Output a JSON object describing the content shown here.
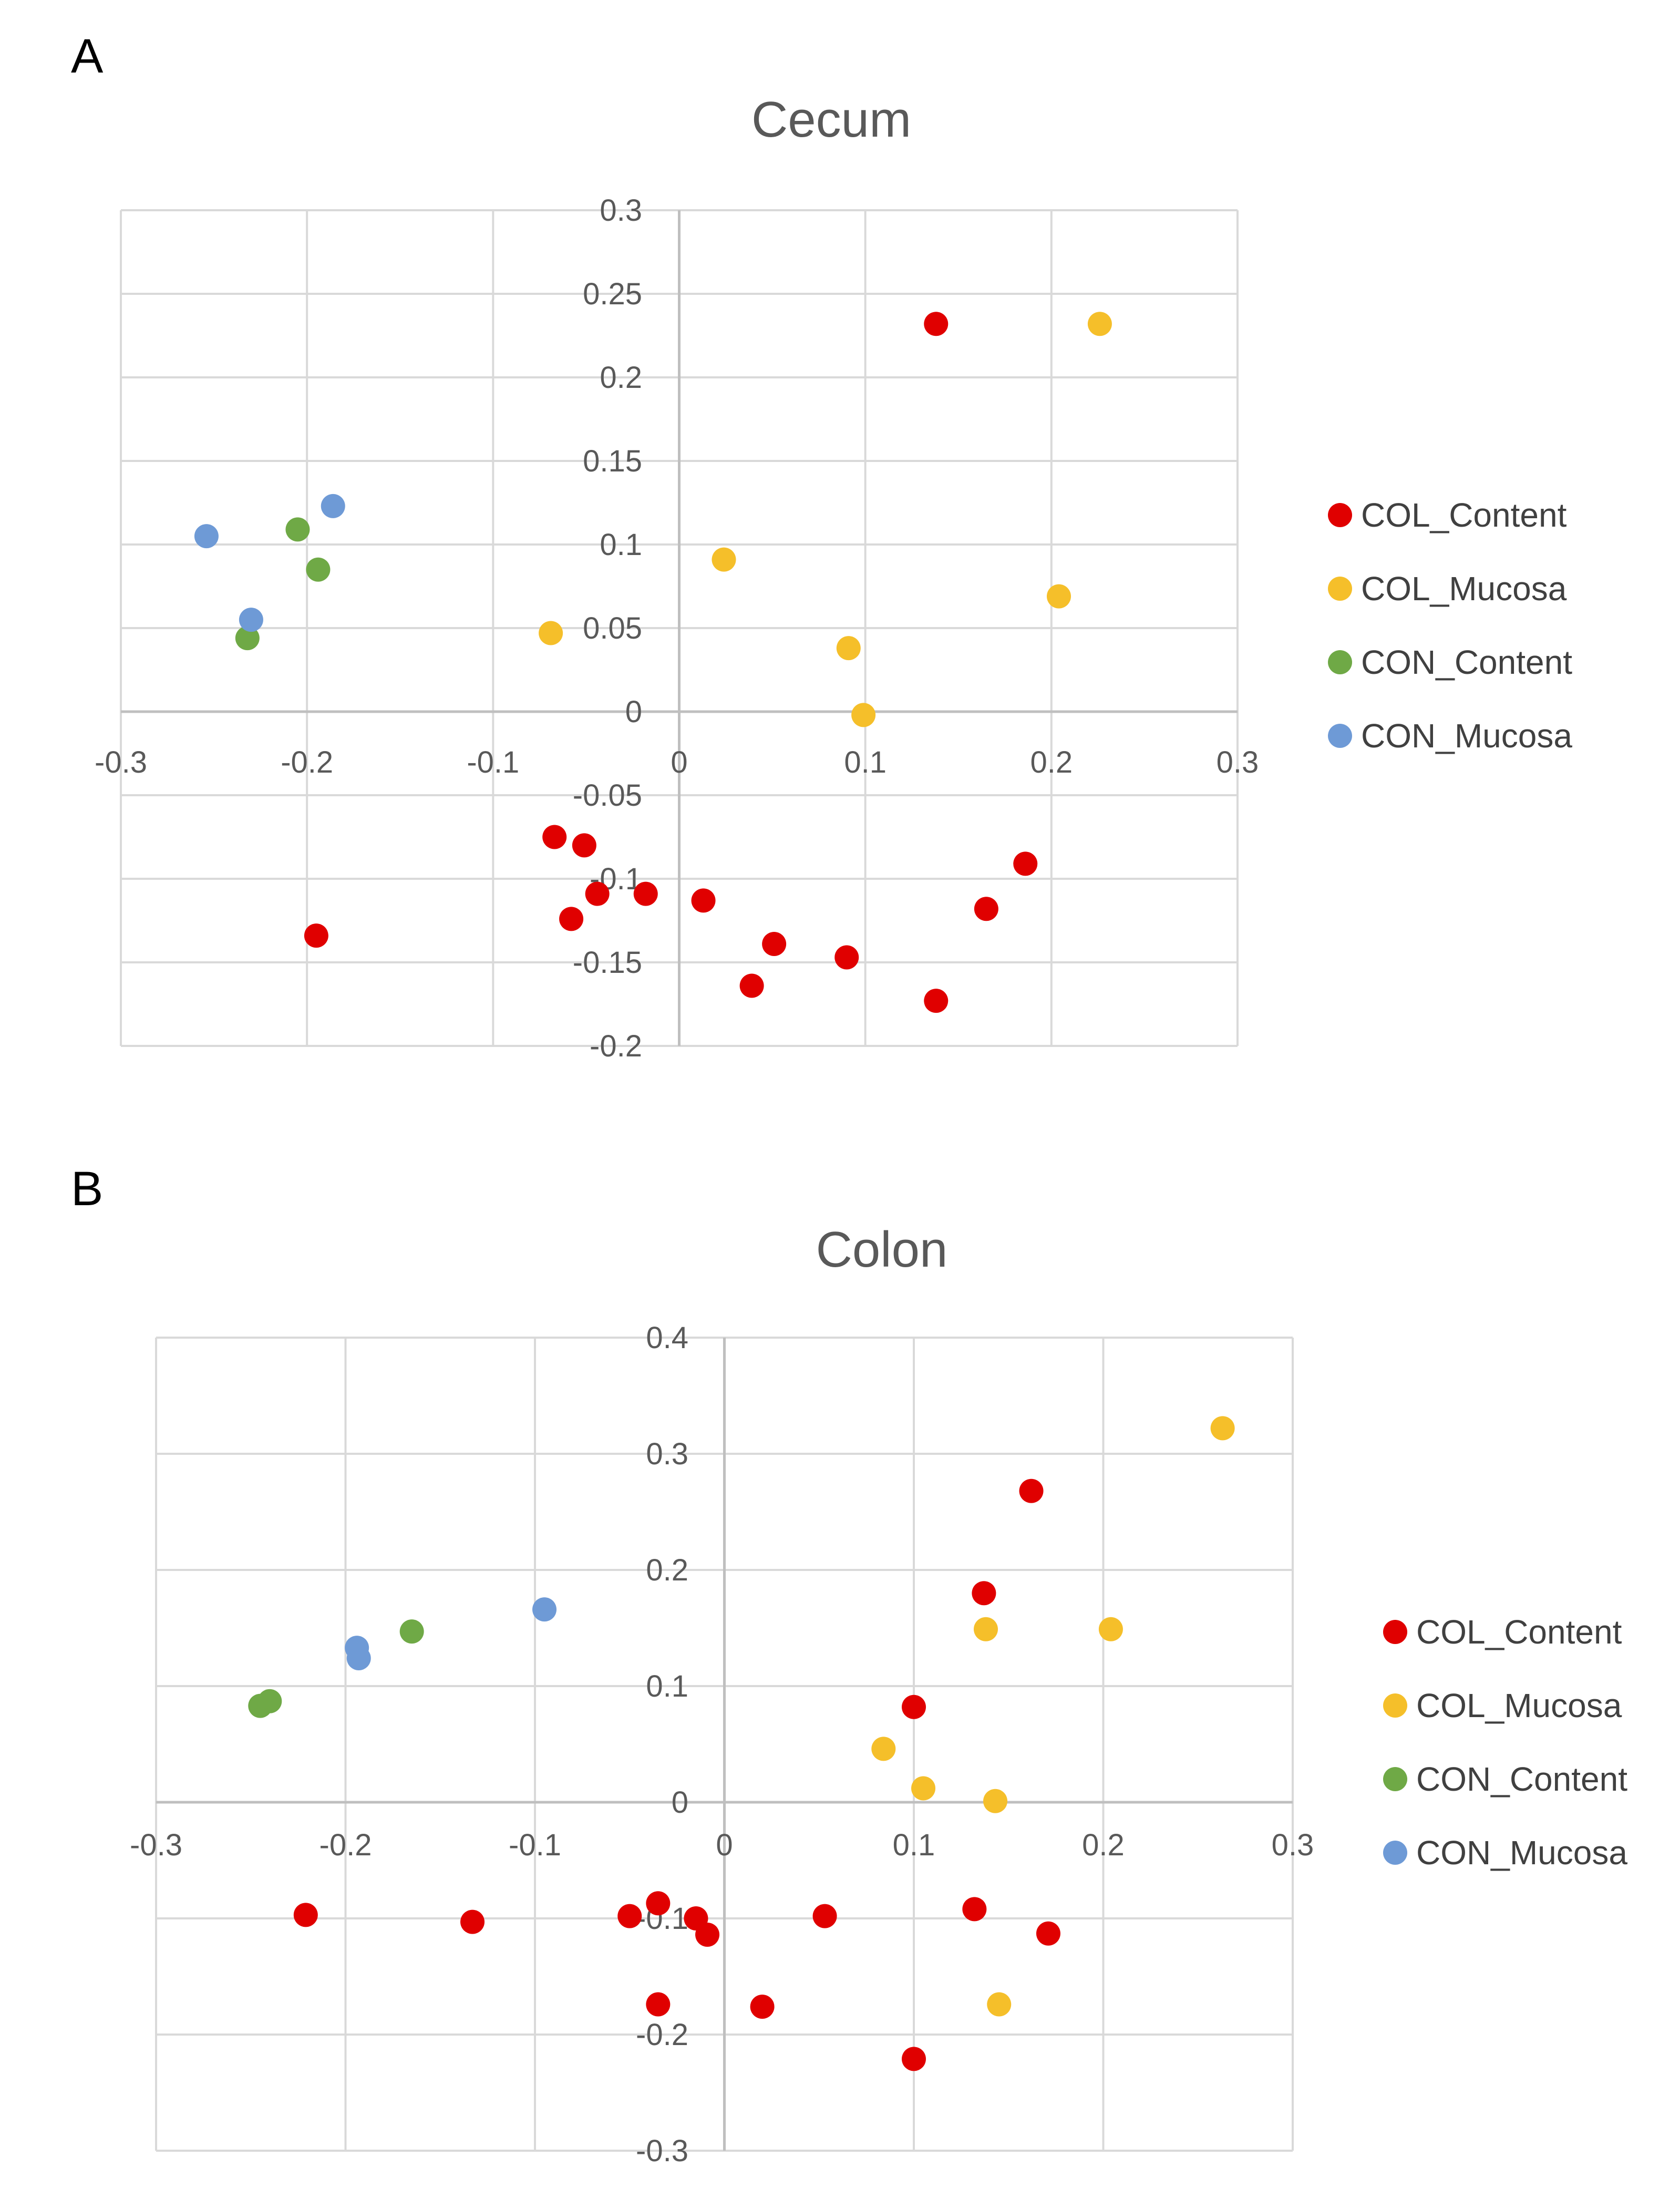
{
  "figure": {
    "panels": [
      {
        "letter": "A"
      },
      {
        "letter": "B"
      }
    ]
  },
  "colors": {
    "COL_Content": "#e00000",
    "COL_Mucosa": "#f5bf2a",
    "CON_Content": "#6fa946",
    "CON_Mucosa": "#6e9ad6",
    "grid": "#d9d9d9",
    "axis": "#bfbfbf"
  },
  "chart_data": [
    {
      "type": "scatter",
      "title": "Cecum",
      "xlabel": "",
      "ylabel": "",
      "xlim": [
        -0.3,
        0.3
      ],
      "ylim": [
        -0.2,
        0.3
      ],
      "xticks": [
        -0.3,
        -0.2,
        -0.1,
        0,
        0.1,
        0.2,
        0.3
      ],
      "xtick_labels": [
        "-0.3",
        "-0.2",
        "-0.1",
        "0",
        "0.1",
        "0.2",
        "0.3"
      ],
      "yticks": [
        0.3,
        0.25,
        0.2,
        0.15,
        0.1,
        0.05,
        0,
        -0.05,
        -0.1,
        -0.15,
        -0.2
      ],
      "ytick_labels": [
        "0.3",
        "0.25",
        "0.2",
        "0.15",
        "0.1",
        "0.05",
        "0",
        "-0.05",
        "-0.1",
        "-0.15",
        "-0.2"
      ],
      "grid": true,
      "legend_position": "right",
      "series": [
        {
          "name": "COL_Content",
          "points": [
            [
              0.138,
              0.232
            ],
            [
              -0.067,
              -0.075
            ],
            [
              -0.051,
              -0.08
            ],
            [
              -0.044,
              -0.109
            ],
            [
              -0.058,
              -0.124
            ],
            [
              -0.018,
              -0.109
            ],
            [
              0.013,
              -0.113
            ],
            [
              0.039,
              -0.164
            ],
            [
              0.051,
              -0.139
            ],
            [
              0.09,
              -0.147
            ],
            [
              0.138,
              -0.173
            ],
            [
              0.165,
              -0.118
            ],
            [
              0.186,
              -0.091
            ],
            [
              -0.195,
              -0.134
            ]
          ]
        },
        {
          "name": "COL_Mucosa",
          "points": [
            [
              0.226,
              0.232
            ],
            [
              0.024,
              0.091
            ],
            [
              0.204,
              0.069
            ],
            [
              -0.069,
              0.047
            ],
            [
              0.091,
              0.038
            ],
            [
              0.099,
              -0.002
            ]
          ]
        },
        {
          "name": "CON_Content",
          "points": [
            [
              -0.205,
              0.109
            ],
            [
              -0.194,
              0.085
            ],
            [
              -0.232,
              0.044
            ]
          ]
        },
        {
          "name": "CON_Mucosa",
          "points": [
            [
              -0.254,
              0.105
            ],
            [
              -0.186,
              0.123
            ],
            [
              -0.23,
              0.055
            ]
          ]
        }
      ]
    },
    {
      "type": "scatter",
      "title": "Colon",
      "xlabel": "",
      "ylabel": "",
      "xlim": [
        -0.3,
        0.3
      ],
      "ylim": [
        -0.3,
        0.4
      ],
      "xticks": [
        -0.3,
        -0.2,
        -0.1,
        0,
        0.1,
        0.2,
        0.3
      ],
      "xtick_labels": [
        "-0.3",
        "-0.2",
        "-0.1",
        "0",
        "0.1",
        "0.2",
        "0.3"
      ],
      "yticks": [
        0.4,
        0.3,
        0.2,
        0.1,
        0,
        -0.1,
        -0.2,
        -0.3
      ],
      "ytick_labels": [
        "0.4",
        "0.3",
        "0.2",
        "0.1",
        "0",
        "-0.1",
        "-0.2",
        "-0.3"
      ],
      "grid": true,
      "legend_position": "right",
      "series": [
        {
          "name": "COL_Content",
          "points": [
            [
              0.162,
              0.268
            ],
            [
              0.137,
              0.18
            ],
            [
              0.1,
              0.082
            ],
            [
              -0.221,
              -0.097
            ],
            [
              -0.133,
              -0.103
            ],
            [
              -0.05,
              -0.098
            ],
            [
              -0.035,
              -0.087
            ],
            [
              -0.015,
              -0.1
            ],
            [
              -0.009,
              -0.114
            ],
            [
              0.053,
              -0.098
            ],
            [
              0.132,
              -0.092
            ],
            [
              0.171,
              -0.113
            ],
            [
              -0.035,
              -0.174
            ],
            [
              0.02,
              -0.176
            ],
            [
              0.1,
              -0.221
            ]
          ]
        },
        {
          "name": "COL_Mucosa",
          "points": [
            [
              0.263,
              0.322
            ],
            [
              0.138,
              0.149
            ],
            [
              0.204,
              0.149
            ],
            [
              0.084,
              0.046
            ],
            [
              0.105,
              0.012
            ],
            [
              0.143,
              0.001
            ],
            [
              0.145,
              -0.174
            ]
          ]
        },
        {
          "name": "CON_Content",
          "points": [
            [
              -0.165,
              0.147
            ],
            [
              -0.24,
              0.087
            ],
            [
              -0.245,
              0.083
            ]
          ]
        },
        {
          "name": "CON_Mucosa",
          "points": [
            [
              -0.095,
              0.166
            ],
            [
              -0.194,
              0.133
            ],
            [
              -0.193,
              0.124
            ]
          ]
        }
      ]
    }
  ]
}
